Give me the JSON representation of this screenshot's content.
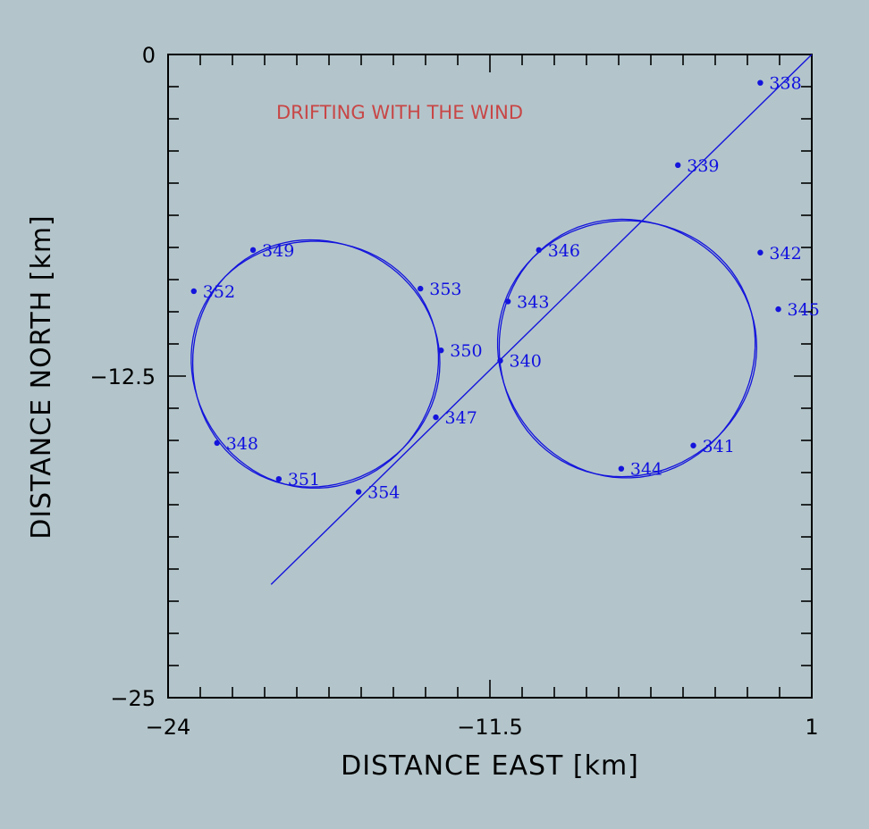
{
  "chart_data": {
    "type": "line",
    "title": "",
    "annotation": "DRIFTING WITH THE WIND",
    "xlabel": "DISTANCE EAST [km]",
    "ylabel": "DISTANCE NORTH [km]",
    "xlim": [
      -24,
      1
    ],
    "ylim": [
      -25,
      0
    ],
    "x_tick_labels": [
      "−24",
      "−11.5",
      "1"
    ],
    "y_tick_labels": [
      "0",
      "−12.5",
      "−25"
    ],
    "grid": false,
    "colors": {
      "track": "#1414dc",
      "annotation": "#c84646",
      "background": "#b3c5cb",
      "axes": "#000000"
    },
    "drift_line": {
      "start": [
        1,
        0
      ],
      "end": [
        -20,
        -20.6
      ]
    },
    "circles": [
      {
        "center": [
          -18.3,
          -12.0
        ],
        "radius": 4.8
      },
      {
        "center": [
          -6.2,
          -11.4
        ],
        "radius": 5.0
      }
    ],
    "points": [
      {
        "label": "338",
        "x": -1.0,
        "y": -1.1
      },
      {
        "label": "339",
        "x": -4.2,
        "y": -4.3
      },
      {
        "label": "340",
        "x": -11.1,
        "y": -11.9
      },
      {
        "label": "341",
        "x": -3.6,
        "y": -15.2
      },
      {
        "label": "342",
        "x": -1.0,
        "y": -7.7
      },
      {
        "label": "343",
        "x": -10.8,
        "y": -9.6
      },
      {
        "label": "344",
        "x": -6.4,
        "y": -16.1
      },
      {
        "label": "345",
        "x": -0.3,
        "y": -9.9
      },
      {
        "label": "346",
        "x": -9.6,
        "y": -7.6
      },
      {
        "label": "347",
        "x": -13.6,
        "y": -14.1
      },
      {
        "label": "348",
        "x": -22.1,
        "y": -15.1
      },
      {
        "label": "349",
        "x": -20.7,
        "y": -7.6
      },
      {
        "label": "350",
        "x": -13.4,
        "y": -11.5
      },
      {
        "label": "351",
        "x": -19.7,
        "y": -16.5
      },
      {
        "label": "352",
        "x": -23.0,
        "y": -9.2
      },
      {
        "label": "353",
        "x": -14.2,
        "y": -9.1
      },
      {
        "label": "354",
        "x": -16.6,
        "y": -17.0
      }
    ]
  }
}
